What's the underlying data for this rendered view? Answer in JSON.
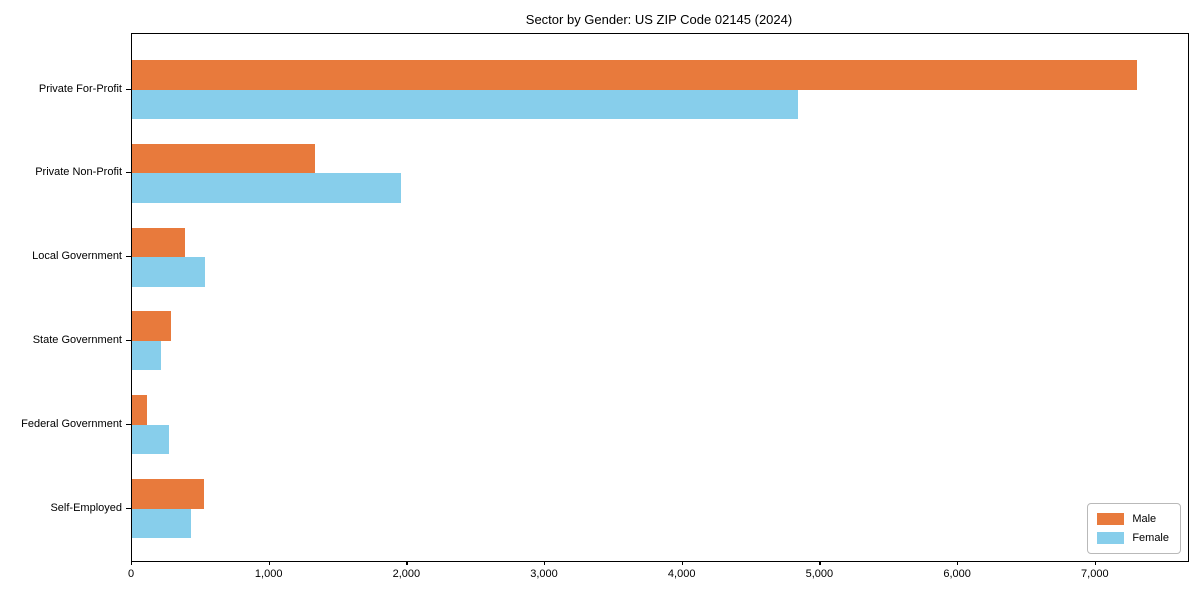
{
  "title": "Sector by Gender: US ZIP Code 02145 (2024)",
  "chart_data": {
    "type": "bar",
    "orientation": "horizontal",
    "title": "Sector by Gender: US ZIP Code 02145 (2024)",
    "categories": [
      "Private For-Profit",
      "Private Non-Profit",
      "Local Government",
      "State Government",
      "Federal Government",
      "Self-Employed"
    ],
    "series": [
      {
        "name": "Male",
        "color": "#E87A3C",
        "values": [
          7300,
          1330,
          385,
          280,
          110,
          520
        ]
      },
      {
        "name": "Female",
        "color": "#87CEEB",
        "values": [
          4840,
          1950,
          530,
          210,
          270,
          430
        ]
      }
    ],
    "xlabel": "",
    "ylabel": "",
    "xlim": [
      0,
      7670
    ],
    "xticks": [
      {
        "value": 0,
        "label": "0"
      },
      {
        "value": 1000,
        "label": "1,000"
      },
      {
        "value": 2000,
        "label": "2,000"
      },
      {
        "value": 3000,
        "label": "3,000"
      },
      {
        "value": 4000,
        "label": "4,000"
      },
      {
        "value": 5000,
        "label": "5,000"
      },
      {
        "value": 6000,
        "label": "6,000"
      },
      {
        "value": 7000,
        "label": "7,000"
      }
    ],
    "grid": false,
    "legend": {
      "position": "lower right",
      "entries": [
        "Male",
        "Female"
      ]
    }
  }
}
